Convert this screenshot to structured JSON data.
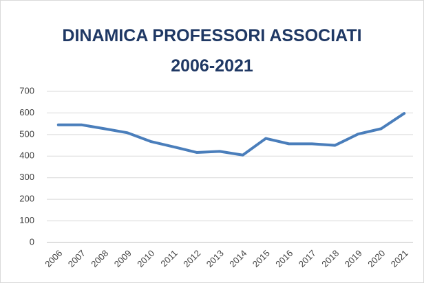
{
  "chart_data": {
    "type": "line",
    "title": "DINAMICA PROFESSORI ASSOCIATI 2006-2021",
    "categories": [
      "2006",
      "2007",
      "2008",
      "2009",
      "2010",
      "2011",
      "2012",
      "2013",
      "2014",
      "2015",
      "2016",
      "2017",
      "2018",
      "2019",
      "2020",
      "2021"
    ],
    "values": [
      545,
      545,
      527,
      508,
      468,
      443,
      417,
      422,
      405,
      482,
      457,
      457,
      450,
      502,
      527,
      598
    ],
    "color": "#4a7ebb",
    "ylim": [
      0,
      700
    ],
    "yticks": [
      0,
      100,
      200,
      300,
      400,
      500,
      600,
      700
    ],
    "grid": true
  }
}
